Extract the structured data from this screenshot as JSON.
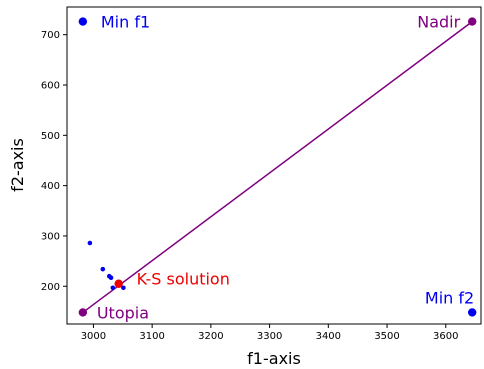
{
  "chart_data": {
    "type": "scatter",
    "xlabel": "f1-axis",
    "ylabel": "f2-axis",
    "xlim": [
      2955,
      3660
    ],
    "ylim": [
      125,
      755
    ],
    "xticks": [
      3000,
      3100,
      3200,
      3300,
      3400,
      3500,
      3600
    ],
    "yticks": [
      200,
      300,
      400,
      500,
      600,
      700
    ],
    "grid": false,
    "legend": "none",
    "points": [
      {
        "x": 3033,
        "y": 197
      },
      {
        "x": 3051,
        "y": 197
      },
      {
        "x": 3030,
        "y": 217
      },
      {
        "x": 3027,
        "y": 220
      },
      {
        "x": 3016,
        "y": 234
      },
      {
        "x": 2994,
        "y": 286
      }
    ],
    "annotations": [
      {
        "label": "Min f1",
        "x": 2982,
        "y": 726,
        "color": "#0000ee"
      },
      {
        "label": "Min f2",
        "x": 3645,
        "y": 148,
        "color": "#0000ee"
      },
      {
        "label": "Nadir",
        "x": 3645,
        "y": 726,
        "color": "#800080"
      },
      {
        "label": "Utopia",
        "x": 2982,
        "y": 148,
        "color": "#800080"
      },
      {
        "label": "K-S solution",
        "x": 3043,
        "y": 205,
        "color": "#ee0000"
      }
    ],
    "line": {
      "from": [
        2982,
        148
      ],
      "to": [
        3645,
        726
      ],
      "color": "#800080"
    },
    "colors": {
      "points": "#0000ee",
      "nadir_utopia": "#800080",
      "ks": "#ee0000"
    }
  }
}
